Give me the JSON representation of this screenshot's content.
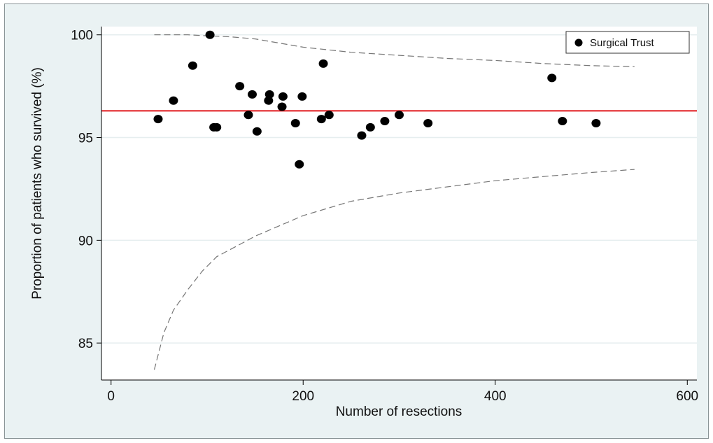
{
  "chart_data": {
    "type": "scatter",
    "title": "",
    "xlabel": "Number of resections",
    "ylabel": "Proportion of patients who survived (%)",
    "xlim": [
      -10,
      610
    ],
    "ylim": [
      83.2,
      100.4
    ],
    "x_ticks": [
      0,
      200,
      400,
      600
    ],
    "y_ticks": [
      85,
      90,
      95,
      100
    ],
    "grid": "horizontal",
    "legend": {
      "position": "top-right",
      "entries": [
        "Surgical Trust"
      ]
    },
    "colors": {
      "points": "#000000",
      "reference_line": "#e0191e",
      "limits": "#777777",
      "background": "#eaf2f3",
      "plot_bg": "#ffffff"
    },
    "series": [
      {
        "name": "Surgical Trust",
        "kind": "scatter",
        "x": [
          49,
          65,
          85,
          103,
          107,
          110,
          134,
          143,
          147,
          152,
          164,
          165,
          178,
          179,
          192,
          196,
          199,
          219,
          221,
          227,
          261,
          270,
          285,
          300,
          330,
          459,
          470,
          505
        ],
        "y": [
          95.9,
          96.8,
          98.5,
          100.0,
          95.5,
          95.5,
          97.5,
          96.1,
          97.1,
          95.3,
          96.8,
          97.1,
          96.5,
          97.0,
          95.7,
          93.7,
          97.0,
          95.9,
          98.6,
          96.1,
          95.1,
          95.5,
          95.8,
          96.1,
          95.7,
          97.9,
          95.8,
          95.7
        ]
      },
      {
        "name": "",
        "kind": "reference-line",
        "y": 96.3
      },
      {
        "name": "",
        "kind": "upper-limit",
        "x": [
          45,
          60,
          80,
          100,
          125,
          150,
          175,
          200,
          250,
          300,
          350,
          400,
          450,
          500,
          545
        ],
        "y": [
          100.0,
          100.0,
          100.0,
          99.95,
          99.9,
          99.8,
          99.6,
          99.4,
          99.15,
          99.0,
          98.85,
          98.75,
          98.6,
          98.5,
          98.45
        ]
      },
      {
        "name": "",
        "kind": "lower-limit",
        "x": [
          45,
          55,
          65,
          80,
          95,
          110,
          130,
          150,
          175,
          200,
          250,
          300,
          350,
          400,
          450,
          500,
          545
        ],
        "y": [
          83.7,
          85.5,
          86.6,
          87.6,
          88.5,
          89.2,
          89.7,
          90.2,
          90.7,
          91.2,
          91.9,
          92.3,
          92.6,
          92.9,
          93.1,
          93.3,
          93.45
        ]
      }
    ]
  }
}
